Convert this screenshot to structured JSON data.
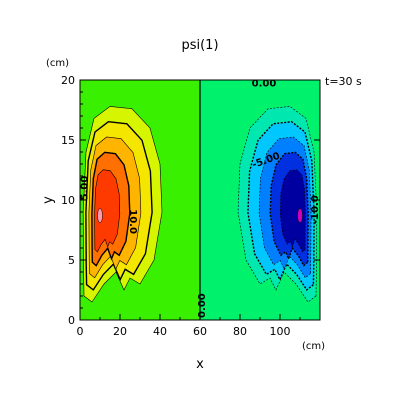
{
  "chart_data": {
    "type": "heatmap",
    "title": "psi(1)",
    "annotation": "t=30 s",
    "xlabel": "x",
    "ylabel": "y",
    "x_unit": "(cm)",
    "y_unit": "(cm)",
    "xlim": [
      0,
      120
    ],
    "ylim": [
      0,
      20
    ],
    "x_ticks": [
      0,
      20,
      40,
      60,
      80,
      100
    ],
    "y_ticks": [
      0,
      5,
      10,
      15,
      20
    ],
    "x_tick_labels": [
      "0",
      "20",
      "40",
      "60",
      "80",
      "100"
    ],
    "y_tick_labels": [
      "0",
      "5",
      "10",
      "15",
      "20"
    ],
    "contour_labels": [
      {
        "text": "0.00",
        "x": 61,
        "y": 1.2,
        "angle": -90
      },
      {
        "text": "0.00",
        "x": 92,
        "y": 19.7,
        "angle": 0
      },
      {
        "text": "5.00",
        "x": 2.3,
        "y": 11.0,
        "angle": -90
      },
      {
        "text": "10.0",
        "x": 26.5,
        "y": 8.2,
        "angle": 90
      },
      {
        "text": "-5.00",
        "x": 93,
        "y": 13.3,
        "angle": -20
      },
      {
        "text": "-10.0",
        "x": 117.5,
        "y": 9.2,
        "angle": -90
      }
    ],
    "extrema": {
      "max_x": 10,
      "max_y": 8.7,
      "min_x": 110,
      "min_y": 8.7
    }
  }
}
